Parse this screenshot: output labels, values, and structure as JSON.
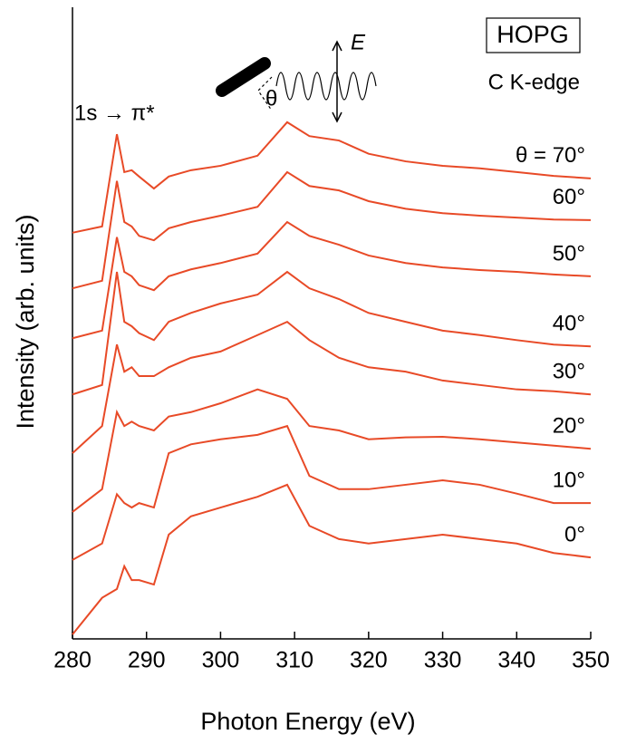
{
  "chart_data": {
    "type": "line",
    "x_label": "Photon Energy (eV)",
    "y_label": "Intensity (arb. units)",
    "annotations": [
      "HOPG",
      "C K-edge",
      "1s → π*",
      "E",
      "θ"
    ],
    "x": [
      280,
      284,
      286,
      287,
      288,
      289,
      291,
      293,
      296,
      300,
      305,
      309,
      312,
      316,
      320,
      325,
      330,
      335,
      340,
      345,
      350
    ],
    "xlim": [
      280,
      350
    ],
    "xticks": [
      280,
      290,
      300,
      310,
      320,
      330,
      340,
      350
    ],
    "ylim": [
      0,
      100
    ],
    "series": [
      {
        "name": "θ = 70°",
        "color": "#e84a27",
        "values": [
          64.3,
          65.3,
          79.9,
          73.9,
          74.2,
          73.2,
          71.3,
          73.2,
          74.2,
          74.9,
          76.5,
          81.8,
          79.6,
          78.9,
          76.8,
          75.6,
          74.9,
          74.5,
          73.9,
          73.3,
          72.9
        ]
      },
      {
        "name": "60°",
        "color": "#e84a27",
        "values": [
          55.5,
          56.7,
          72.5,
          66.0,
          65.3,
          63.8,
          63.1,
          65.0,
          66.0,
          67.0,
          68.4,
          73.9,
          71.7,
          71.0,
          69.3,
          68.1,
          67.4,
          67.0,
          66.7,
          66.4,
          66.3
        ]
      },
      {
        "name": "50°",
        "color": "#e84a27",
        "values": [
          47.6,
          48.8,
          63.6,
          58.1,
          57.4,
          56.0,
          55.2,
          57.4,
          58.5,
          59.5,
          61.0,
          66.0,
          63.8,
          62.4,
          60.7,
          59.5,
          58.8,
          58.4,
          58.1,
          57.7,
          57.4
        ]
      },
      {
        "name": "40°",
        "color": "#e84a27",
        "values": [
          38.7,
          40.2,
          58.1,
          50.2,
          49.5,
          48.4,
          47.3,
          50.2,
          51.6,
          53.1,
          54.5,
          58.1,
          55.5,
          53.8,
          51.6,
          50.2,
          48.8,
          48.1,
          47.3,
          46.6,
          46.3
        ]
      },
      {
        "name": "30°",
        "color": "#e84a27",
        "values": [
          29.4,
          33.7,
          46.6,
          42.3,
          43.0,
          41.6,
          41.6,
          43.0,
          44.5,
          45.5,
          48.1,
          50.2,
          47.3,
          44.5,
          43.0,
          42.3,
          40.9,
          40.2,
          39.5,
          39.2,
          38.7
        ]
      },
      {
        "name": "20°",
        "color": "#e84a27",
        "values": [
          20.1,
          23.7,
          35.9,
          33.7,
          34.4,
          33.7,
          33.0,
          35.2,
          35.9,
          37.3,
          39.5,
          38.0,
          33.7,
          33.0,
          31.6,
          31.9,
          32.0,
          31.6,
          31.1,
          30.6,
          30.1
        ]
      },
      {
        "name": "10°",
        "color": "#e84a27",
        "values": [
          12.5,
          15.1,
          22.9,
          21.5,
          20.8,
          21.5,
          20.8,
          29.4,
          30.8,
          31.6,
          32.3,
          33.7,
          25.8,
          23.7,
          23.7,
          24.4,
          25.1,
          24.4,
          23.0,
          21.5,
          21.5
        ]
      },
      {
        "name": "0°",
        "color": "#e84a27",
        "values": [
          0.7,
          6.5,
          7.9,
          11.5,
          9.3,
          9.3,
          8.6,
          16.5,
          19.4,
          20.8,
          22.5,
          24.4,
          17.9,
          15.8,
          15.1,
          15.8,
          16.5,
          15.8,
          15.1,
          13.6,
          12.9
        ]
      }
    ]
  }
}
